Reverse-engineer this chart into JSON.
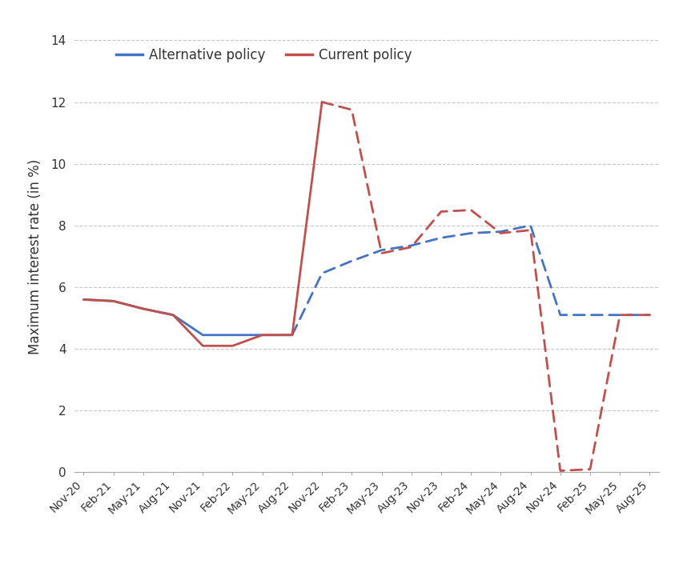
{
  "ylabel": "Maximum interest rate (in %)",
  "ylim": [
    0,
    14
  ],
  "yticks": [
    0,
    2,
    4,
    6,
    8,
    10,
    12,
    14
  ],
  "x_labels": [
    "Nov-20",
    "Feb-21",
    "May-21",
    "Aug-21",
    "Nov-21",
    "Feb-22",
    "May-22",
    "Aug-22",
    "Nov-22",
    "Feb-23",
    "May-23",
    "Aug-23",
    "Nov-23",
    "Feb-24",
    "May-24",
    "Aug-24",
    "Nov-24",
    "Feb-25",
    "May-25",
    "Aug-25"
  ],
  "alt_solid_x": [
    0,
    1,
    2,
    3,
    4,
    5,
    6,
    7
  ],
  "alt_solid_y": [
    5.6,
    5.55,
    5.3,
    5.1,
    4.45,
    4.45,
    4.45,
    4.45
  ],
  "alt_dash_x": [
    7,
    8,
    9,
    10,
    11,
    12,
    13,
    14,
    15,
    16,
    17,
    18,
    19
  ],
  "alt_dash_y": [
    4.45,
    6.45,
    6.85,
    7.2,
    7.35,
    7.6,
    7.75,
    7.8,
    8.0,
    5.1,
    5.1,
    5.1,
    5.1
  ],
  "cur_solid_x": [
    0,
    1,
    2,
    3,
    4,
    5,
    6,
    7,
    8
  ],
  "cur_solid_y": [
    5.6,
    5.55,
    5.3,
    5.1,
    4.1,
    4.1,
    4.45,
    4.45,
    12.0
  ],
  "cur_dash_x": [
    8,
    9,
    10,
    11,
    12,
    13,
    14,
    15,
    16,
    17,
    18,
    19
  ],
  "cur_dash_y": [
    12.0,
    11.75,
    7.1,
    7.3,
    8.45,
    8.5,
    7.75,
    7.85,
    0.05,
    0.1,
    5.1,
    5.1
  ],
  "alt_color": "#4472c4",
  "cur_color": "#c0504d",
  "grid_color": "#c0c0c0",
  "bg_color": "#ffffff",
  "legend_alt": "Alternative policy",
  "legend_cur": "Current policy"
}
